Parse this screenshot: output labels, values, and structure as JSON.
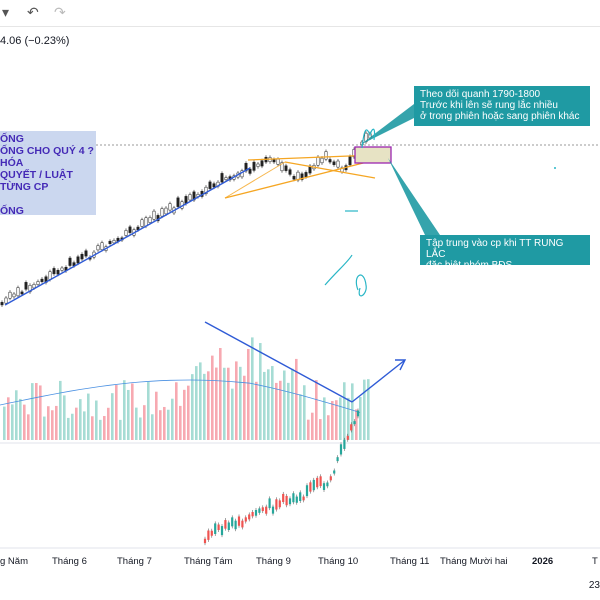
{
  "toolbar": {
    "icon_dropdown": "dropdown-arrow-icon",
    "icon_undo": "undo-icon",
    "icon_redo": "redo-icon"
  },
  "price_change": "4.06 (−0.23%)",
  "notes": {
    "top_right": [
      "Theo dõi quanh 1790-1800",
      "Trước khi lên sẽ rung lắc nhiều",
      "ở trong phiên hoặc sang phiên khác"
    ],
    "middle_right": [
      "Tập trung vào cp khi TT RUNG LẮC",
      "đặc biệt nhóm BĐS"
    ]
  },
  "news_box": [
    "ỐNG",
    "ỐNG CHO QUÝ 4 ?",
    "HÓA",
    "QUYẾT / LUẬT",
    "TỪNG CP",
    "",
    "ỐNG"
  ],
  "time_axis": [
    "g Năm",
    "Tháng 6",
    "Tháng 7",
    "Tháng Tám",
    "Tháng 9",
    "Tháng 10",
    "Tháng 11",
    "Tháng Mười hai",
    "2026",
    "T"
  ],
  "corner_label": "23",
  "colors": {
    "up": "#26a69a",
    "down": "#ef5350",
    "vol_up": "#a6dcd4",
    "vol_down": "#f7a9b1",
    "trend": "#2f5bd6",
    "channel": "#f5a623",
    "note": "#1f9aa3",
    "box": "#9c27b0"
  }
}
